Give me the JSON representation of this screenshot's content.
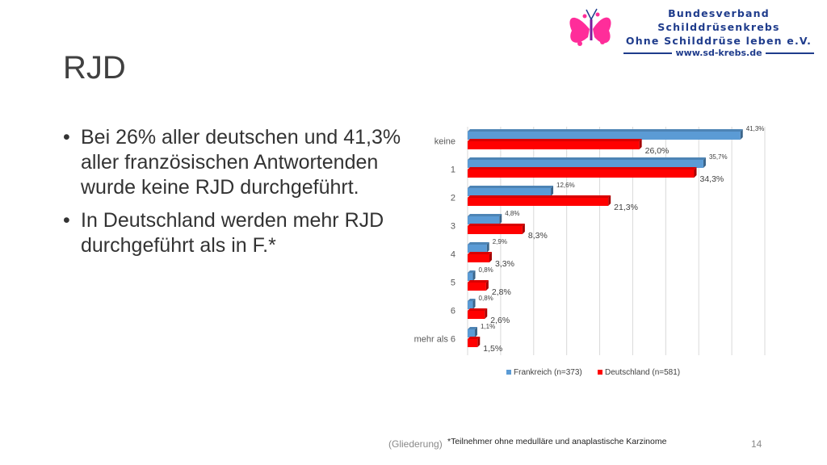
{
  "logo": {
    "line1": "Bundesverband Schilddrüsenkrebs",
    "line2": "Ohne Schilddrüse leben e.V.",
    "url": "www.sd-krebs.de"
  },
  "slide": {
    "title": "RJD",
    "bullets": [
      "Bei 26% aller deutschen und 41,3% aller französischen Antwortenden wurde keine RJD durchgeführt.",
      "In Deutschland werden mehr RJD durchgeführt als in F.*"
    ],
    "footer_left": "(Gliederung)",
    "footnote": "*Teilnehmer ohne medulläre und anaplastische Karzinome",
    "page_number": "14"
  },
  "chart_data": {
    "type": "bar",
    "orientation": "horizontal",
    "categories": [
      "keine",
      "1",
      "2",
      "3",
      "4",
      "5",
      "6",
      "mehr als 6"
    ],
    "series": [
      {
        "name": "Frankreich (n=373)",
        "color": "#5b9bd5",
        "values": [
          41.3,
          35.7,
          12.6,
          4.8,
          2.9,
          0.8,
          0.8,
          1.1
        ],
        "labels": [
          "41,3%",
          "35,7%",
          "12,6%",
          "4,8%",
          "2,9%",
          "0,8%",
          "0,8%",
          "1,1%"
        ]
      },
      {
        "name": "Deutschland (n=581)",
        "color": "#ff0000",
        "values": [
          26.0,
          34.3,
          21.3,
          8.3,
          3.3,
          2.8,
          2.6,
          1.5
        ],
        "labels": [
          "26,0%",
          "34,3%",
          "21,3%",
          "8,3%",
          "3,3%",
          "2,8%",
          "2,6%",
          "1,5%"
        ]
      }
    ],
    "xlim": [
      0,
      45
    ],
    "grid": true,
    "legend": "bottom"
  }
}
